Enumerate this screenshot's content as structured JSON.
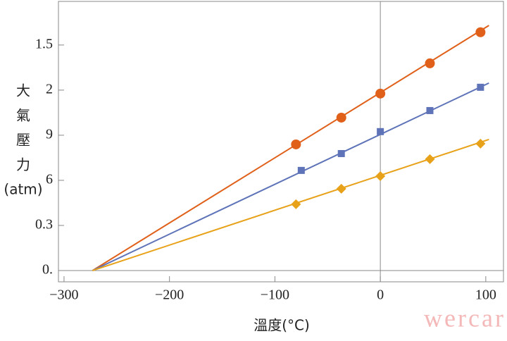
{
  "chart_data": {
    "type": "line",
    "xlabel": "溫度(°C)",
    "ylabel": [
      "大",
      "氣",
      "壓",
      "力",
      "(atm)"
    ],
    "watermark": "wercar",
    "xlim": [
      -305.3,
      116.8
    ],
    "ylim": [
      -0.075,
      1.79
    ],
    "xticks": [
      {
        "value": -300,
        "label": "−300"
      },
      {
        "value": -200,
        "label": "−200"
      },
      {
        "value": -100,
        "label": "−100"
      },
      0,
      100
    ],
    "yticks": [
      {
        "value": 0,
        "label": "0."
      },
      0.3,
      {
        "value": 0.6,
        "label": "6"
      },
      {
        "value": 0.9,
        "label": "9"
      },
      {
        "value": 1.2,
        "label": "2"
      },
      1.5
    ],
    "series": [
      {
        "color": "#e0601a",
        "marker": "circle",
        "x": [
          -80,
          -37,
          0,
          47,
          95
        ],
        "values": [
          0.839,
          1.017,
          1.177,
          1.378,
          1.585
        ],
        "line_x": [
          -273,
          103
        ],
        "line_values": [
          0,
          1.63
        ]
      },
      {
        "color": "#5e73b8",
        "marker": "square",
        "x": [
          -75,
          -37,
          0,
          47,
          95
        ],
        "values": [
          0.666,
          0.778,
          0.924,
          1.064,
          1.219
        ],
        "line_x": [
          -273,
          103
        ],
        "line_values": [
          0,
          1.247
        ]
      },
      {
        "color": "#e8a21a",
        "marker": "diamond",
        "x": [
          -80,
          -37,
          0,
          47,
          95
        ],
        "values": [
          0.441,
          0.544,
          0.628,
          0.741,
          0.844
        ],
        "line_x": [
          -273,
          103
        ],
        "line_values": [
          0,
          0.872
        ]
      }
    ]
  }
}
